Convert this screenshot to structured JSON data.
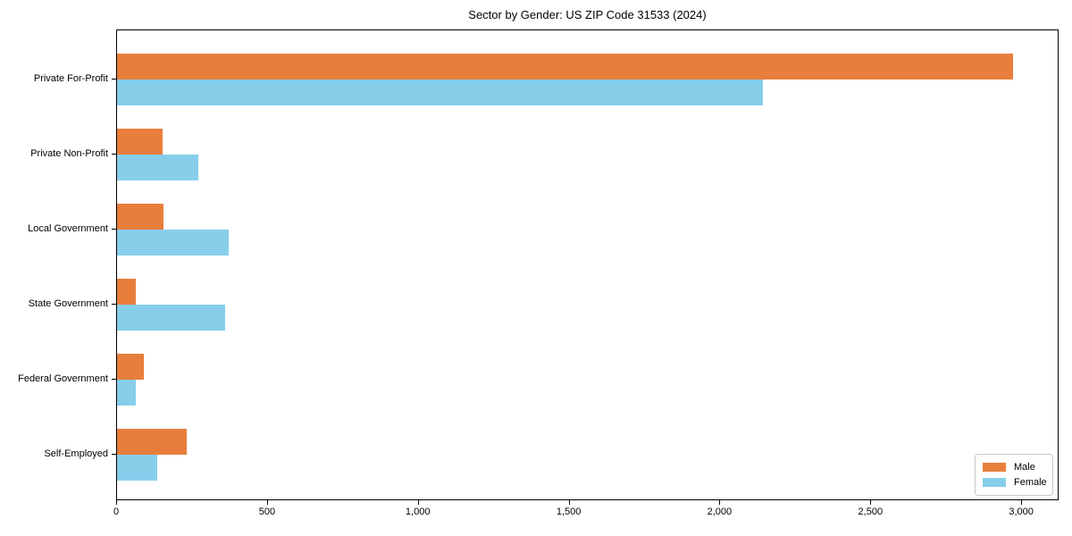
{
  "chart_data": {
    "type": "bar",
    "orientation": "horizontal",
    "title": "Sector by Gender: US ZIP Code 31533 (2024)",
    "categories": [
      "Private For-Profit",
      "Private Non-Profit",
      "Local Government",
      "State Government",
      "Federal Government",
      "Self-Employed"
    ],
    "series": [
      {
        "name": "Male",
        "color": "#E87E3C",
        "values": [
          2970,
          152,
          155,
          63,
          89,
          230
        ]
      },
      {
        "name": "Female",
        "color": "#87CEEB",
        "values": [
          2140,
          270,
          371,
          359,
          63,
          132
        ]
      }
    ],
    "xlabel": "",
    "ylabel": "",
    "xlim": [
      0,
      3124
    ],
    "xticks": [
      0,
      500,
      1000,
      1500,
      2000,
      2500,
      3000
    ],
    "xtick_labels": [
      "0",
      "500",
      "1,000",
      "1,500",
      "2,000",
      "2,500",
      "3,000"
    ],
    "grid": false,
    "legend": {
      "position": "lower right",
      "entries": [
        "Male",
        "Female"
      ]
    }
  },
  "colors": {
    "male": "#E87E3C",
    "female": "#87CEEB",
    "axis": "#000000",
    "background": "#ffffff",
    "legend_border": "#c8c8c8"
  }
}
